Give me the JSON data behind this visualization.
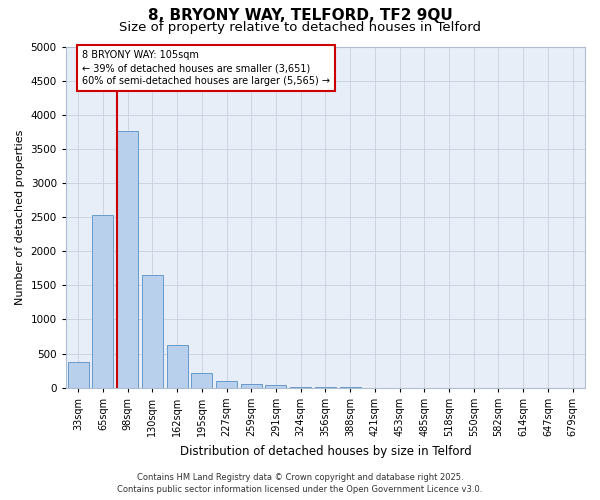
{
  "title": "8, BRYONY WAY, TELFORD, TF2 9QU",
  "subtitle": "Size of property relative to detached houses in Telford",
  "xlabel": "Distribution of detached houses by size in Telford",
  "ylabel": "Number of detached properties",
  "categories": [
    "33sqm",
    "65sqm",
    "98sqm",
    "130sqm",
    "162sqm",
    "195sqm",
    "227sqm",
    "259sqm",
    "291sqm",
    "324sqm",
    "356sqm",
    "388sqm",
    "421sqm",
    "453sqm",
    "485sqm",
    "518sqm",
    "550sqm",
    "582sqm",
    "614sqm",
    "647sqm",
    "679sqm"
  ],
  "bar_heights": [
    380,
    2530,
    3760,
    1650,
    620,
    220,
    95,
    60,
    35,
    10,
    5,
    3,
    2,
    1,
    1,
    0,
    0,
    0,
    0,
    0,
    0
  ],
  "bar_color": "#b8d0ec",
  "bar_edge_color": "#6699cc",
  "vline_color": "#cc0000",
  "vline_x_index": 2,
  "ylim": [
    0,
    5000
  ],
  "yticks": [
    0,
    500,
    1000,
    1500,
    2000,
    2500,
    3000,
    3500,
    4000,
    4500,
    5000
  ],
  "annotation_text": "8 BRYONY WAY: 105sqm\n← 39% of detached houses are smaller (3,651)\n60% of semi-detached houses are larger (5,565) →",
  "annotation_box_color": "#cc0000",
  "background_color": "#e8eef8",
  "footer_line1": "Contains HM Land Registry data © Crown copyright and database right 2025.",
  "footer_line2": "Contains public sector information licensed under the Open Government Licence v3.0.",
  "title_fontsize": 11,
  "subtitle_fontsize": 9.5,
  "ylabel_fontsize": 8,
  "xlabel_fontsize": 8.5,
  "tick_fontsize": 7,
  "ytick_fontsize": 7.5,
  "annotation_fontsize": 7,
  "footer_fontsize": 6
}
